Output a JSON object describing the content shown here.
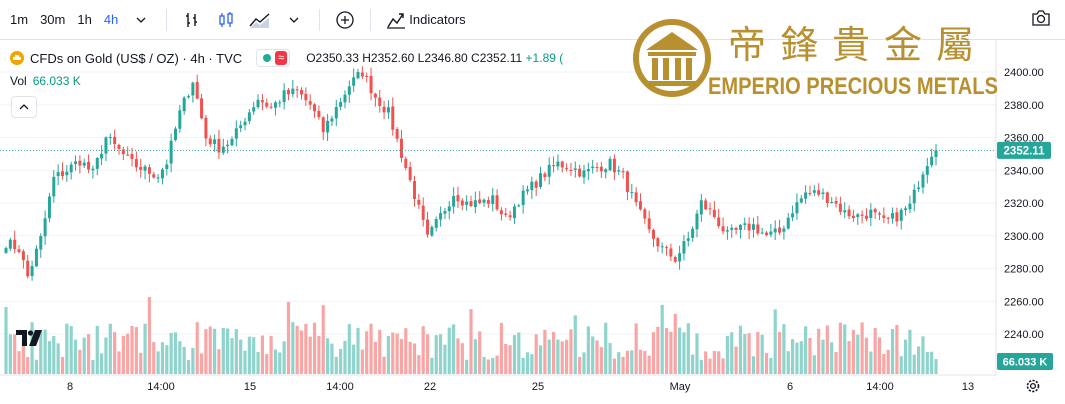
{
  "toolbar": {
    "intervals": [
      "1m",
      "30m",
      "1h",
      "4h"
    ],
    "active_interval": "4h",
    "indicators_label": "Indicators"
  },
  "legend": {
    "symbol": "CFDs on Gold (US$ / OZ) · 4h · TVC",
    "status_badge": "≈",
    "open": "O2350.33",
    "high": "H2352.60",
    "low": "L2346.80",
    "close": "C2352.11",
    "change": "+1.89 (",
    "volume_label": "Vol",
    "volume_value": "66.033 K"
  },
  "watermark": {
    "chinese": "帝鋒貴金屬",
    "english": "EMPERIO PRECIOUS METALS",
    "gold": "#b9902f"
  },
  "chart_data": {
    "type": "candlestick",
    "symbol": "CFDs on Gold (US$ / OZ)",
    "interval": "4h",
    "y_axis": {
      "ticks": [
        2400,
        2380,
        2360,
        2340,
        2320,
        2300,
        2280,
        2260,
        2240
      ],
      "labels": [
        "2400.00",
        "2380.00",
        "2360.00",
        "2340.00",
        "2320.00",
        "2300.00",
        "2280.00",
        "2260.00",
        "2240.00"
      ]
    },
    "x_axis": {
      "labels": [
        "8",
        "14:00",
        "15",
        "14:00",
        "22",
        "25",
        "May",
        "6",
        "14:00",
        "13"
      ]
    },
    "last_price": 2352.11,
    "last_price_label": "2352.11",
    "last_volume_label": "66.033 K",
    "colors": {
      "up": "#26a69a",
      "down": "#ef5350",
      "up_volume": "#8fd4cc",
      "down_volume": "#f7a6a5",
      "price_line": "#26a69a"
    },
    "anchors": [
      [
        0,
        2296
      ],
      [
        3,
        2292
      ],
      [
        5,
        2275
      ],
      [
        8,
        2298
      ],
      [
        11,
        2335
      ],
      [
        14,
        2340
      ],
      [
        17,
        2346
      ],
      [
        20,
        2338
      ],
      [
        23,
        2360
      ],
      [
        26,
        2352
      ],
      [
        29,
        2344
      ],
      [
        32,
        2340
      ],
      [
        35,
        2337
      ],
      [
        37,
        2345
      ],
      [
        40,
        2375
      ],
      [
        43,
        2395
      ],
      [
        46,
        2360
      ],
      [
        49,
        2354
      ],
      [
        52,
        2358
      ],
      [
        55,
        2372
      ],
      [
        58,
        2384
      ],
      [
        61,
        2378
      ],
      [
        64,
        2386
      ],
      [
        67,
        2388
      ],
      [
        70,
        2380
      ],
      [
        73,
        2364
      ],
      [
        76,
        2378
      ],
      [
        79,
        2392
      ],
      [
        82,
        2400
      ],
      [
        85,
        2385
      ],
      [
        88,
        2375
      ],
      [
        91,
        2350
      ],
      [
        94,
        2325
      ],
      [
        97,
        2298
      ],
      [
        100,
        2312
      ],
      [
        103,
        2326
      ],
      [
        106,
        2320
      ],
      [
        109,
        2320
      ],
      [
        112,
        2322
      ],
      [
        115,
        2310
      ],
      [
        118,
        2322
      ],
      [
        121,
        2330
      ],
      [
        124,
        2338
      ],
      [
        127,
        2344
      ],
      [
        130,
        2342
      ],
      [
        133,
        2338
      ],
      [
        136,
        2342
      ],
      [
        139,
        2344
      ],
      [
        142,
        2336
      ],
      [
        145,
        2318
      ],
      [
        148,
        2302
      ],
      [
        151,
        2292
      ],
      [
        154,
        2286
      ],
      [
        157,
        2298
      ],
      [
        160,
        2320
      ],
      [
        163,
        2312
      ],
      [
        166,
        2300
      ],
      [
        169,
        2304
      ],
      [
        172,
        2306
      ],
      [
        175,
        2300
      ],
      [
        178,
        2302
      ],
      [
        181,
        2316
      ],
      [
        184,
        2326
      ],
      [
        187,
        2326
      ],
      [
        190,
        2322
      ],
      [
        193,
        2314
      ],
      [
        196,
        2312
      ],
      [
        199,
        2314
      ],
      [
        202,
        2308
      ],
      [
        205,
        2312
      ],
      [
        208,
        2318
      ],
      [
        211,
        2340
      ],
      [
        213,
        2351
      ],
      [
        214,
        2352.11
      ]
    ]
  }
}
